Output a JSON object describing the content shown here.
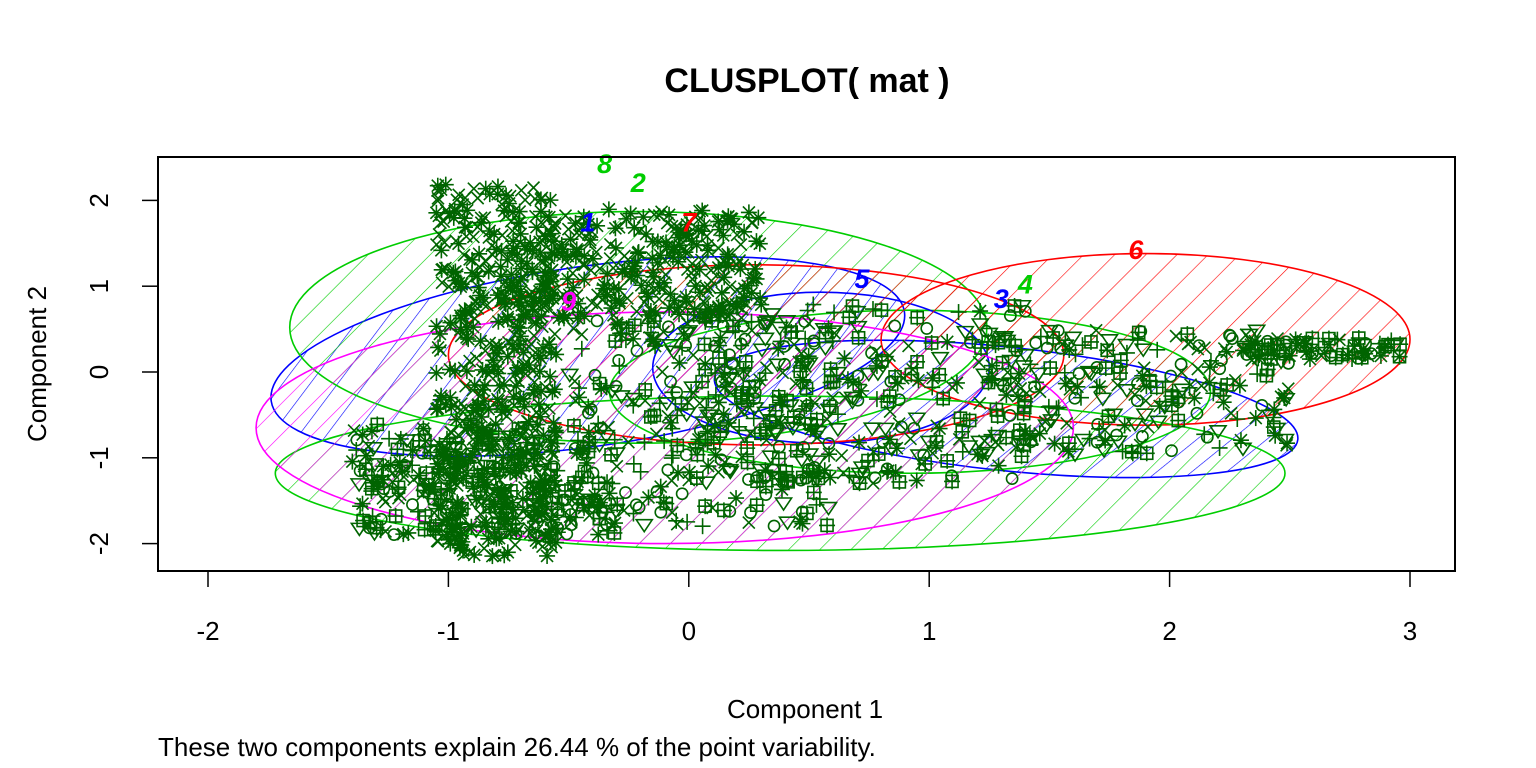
{
  "chart_data": {
    "type": "scatter",
    "title": "CLUSPLOT( mat )",
    "xlabel": "Component 1",
    "ylabel": "Component 2",
    "subtitle": "These two components explain 26.44 % of the point variability.",
    "xlim": [
      -2.2,
      3.1
    ],
    "ylim": [
      -2.3,
      2.5
    ],
    "xticks": [
      -2,
      -1,
      0,
      1,
      2,
      3
    ],
    "yticks": [
      -2,
      -1,
      0,
      1,
      2
    ],
    "grid": false,
    "point_color": "#006400",
    "clusters": [
      {
        "label": "1",
        "color": "#0000ff",
        "cx": -0.42,
        "cy": 0.18,
        "rx": 1.33,
        "ry": 1.05,
        "angle": -8,
        "label_x": -0.42,
        "label_y": 1.72
      },
      {
        "label": "2",
        "color": "#00cd00",
        "cx": -0.21,
        "cy": 0.52,
        "rx": 1.45,
        "ry": 1.35,
        "angle": 0,
        "label_x": -0.21,
        "label_y": 2.18
      },
      {
        "label": "3",
        "color": "#0000ff",
        "cx": 1.32,
        "cy": -0.43,
        "rx": 1.22,
        "ry": 0.72,
        "angle": 6,
        "label_x": 1.3,
        "label_y": 0.83
      },
      {
        "label": "4",
        "color": "#00cd00",
        "cx": 0.92,
        "cy": -0.23,
        "rx": 1.25,
        "ry": 0.95,
        "angle": 0,
        "label_x": 1.4,
        "label_y": 1.0
      },
      {
        "label": "5",
        "color": "#0000ff",
        "cx": 0.55,
        "cy": 0.05,
        "rx": 0.7,
        "ry": 0.88,
        "angle": 0,
        "label_x": 0.72,
        "label_y": 1.06
      },
      {
        "label": "6",
        "color": "#ff0000",
        "cx": 1.9,
        "cy": 0.38,
        "rx": 1.1,
        "ry": 1.0,
        "angle": 0,
        "label_x": 1.86,
        "label_y": 1.4
      },
      {
        "label": "7",
        "color": "#ff0000",
        "cx": 0.28,
        "cy": 0.2,
        "rx": 1.28,
        "ry": 1.05,
        "angle": 0,
        "label_x": 0.0,
        "label_y": 1.72
      },
      {
        "label": "8",
        "color": "#00cd00",
        "cx": 0.38,
        "cy": -1.18,
        "rx": 2.1,
        "ry": 0.9,
        "angle": 0,
        "label_x": -0.35,
        "label_y": 2.4
      },
      {
        "label": "9",
        "color": "#ff00ff",
        "cx": -0.1,
        "cy": -0.65,
        "rx": 1.7,
        "ry": 1.35,
        "angle": 0,
        "label_x": -0.5,
        "label_y": 0.8
      }
    ]
  }
}
